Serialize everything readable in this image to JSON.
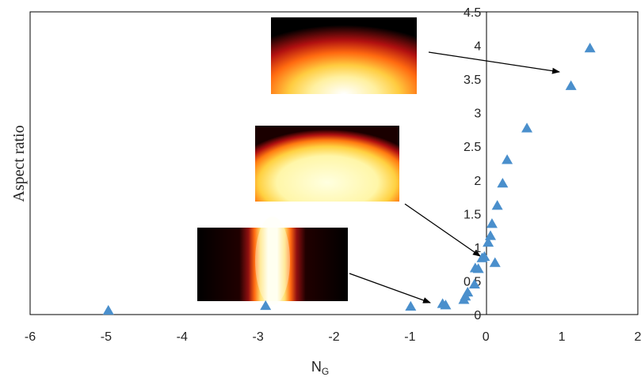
{
  "chart_data": {
    "type": "scatter",
    "xlabel_main": "N",
    "xlabel_sub": "G",
    "ylabel": "Aspect ratio",
    "xlim": [
      -6,
      2
    ],
    "ylim": [
      0,
      4.5
    ],
    "x_ticks": [
      "-6",
      "-5",
      "-4",
      "-3",
      "-2",
      "-1",
      "0",
      "1",
      "2"
    ],
    "y_ticks": [
      "0",
      "0.5",
      "1",
      "1.5",
      "2",
      "2.5",
      "3",
      "3.5",
      "4",
      "4.5"
    ],
    "marker": "triangle",
    "marker_color": "#4A8FCC",
    "x": [
      -4.97,
      -2.9,
      -0.99,
      -0.57,
      -0.53,
      -0.29,
      -0.27,
      -0.24,
      -0.15,
      -0.14,
      -0.1,
      -0.05,
      -0.02,
      0.03,
      0.06,
      0.08,
      0.12,
      0.15,
      0.22,
      0.28,
      0.54,
      1.12,
      1.37
    ],
    "y": [
      0.06,
      0.13,
      0.12,
      0.16,
      0.14,
      0.22,
      0.27,
      0.33,
      0.45,
      0.69,
      0.68,
      0.84,
      0.86,
      1.07,
      1.17,
      1.35,
      0.77,
      1.62,
      1.95,
      2.3,
      2.77,
      3.4,
      3.96
    ],
    "insets": [
      {
        "name": "inset-tall-ellipse",
        "target_x": 1.0,
        "target_y": 3.65
      },
      {
        "name": "inset-round-ellipse",
        "target_x": -0.02,
        "target_y": 0.9
      },
      {
        "name": "inset-narrow-ellipse",
        "target_x": -0.65,
        "target_y": 0.15
      }
    ]
  }
}
